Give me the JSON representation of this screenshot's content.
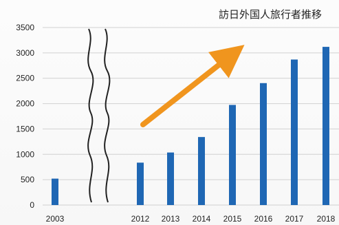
{
  "chart_data": {
    "type": "bar",
    "title": "訪日外国人旅行者推移",
    "categories": [
      "2003",
      "2012",
      "2013",
      "2014",
      "2015",
      "2016",
      "2017",
      "2018"
    ],
    "values": [
      521,
      836,
      1036,
      1341,
      1974,
      2404,
      2869,
      3119
    ],
    "ylim": [
      0,
      3500
    ],
    "y_ticks": [
      0,
      500,
      1000,
      1500,
      2000,
      2500,
      3000,
      3500
    ],
    "xlabel": "",
    "ylabel": "",
    "grid": "horizontal",
    "bar_color": "#1f67b4",
    "arrow_color": "#f0951e",
    "axis_break": "between-2003-and-2012"
  }
}
